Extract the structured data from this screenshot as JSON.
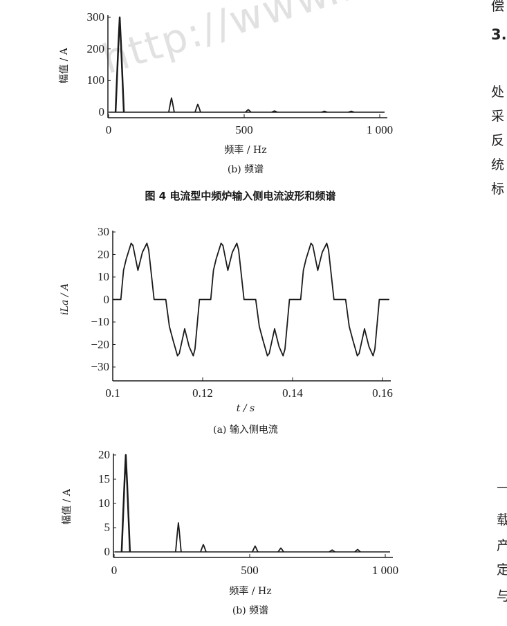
{
  "watermark": "http://www.lxd",
  "right_column": {
    "lines": [
      "偿",
      "3.",
      "处",
      "采",
      "反",
      "统",
      "标",
      "—",
      "载",
      "产",
      "定",
      "与"
    ]
  },
  "figure4": {
    "caption": "图 4  电流型中频炉输入侧电流波形和频谱",
    "sub_caption": "(b) 频谱"
  },
  "figure5": {
    "sub_caption_a": "(a) 输入侧电流",
    "sub_caption_b": "(b) 频谱"
  },
  "colors": {
    "line": "#1a1a1a",
    "watermark": "#aaaaaa"
  },
  "chart_data": [
    {
      "type": "line",
      "title": "",
      "xlabel": "频率 / Hz",
      "ylabel": "幅值 / A",
      "xlim": [
        0,
        1000
      ],
      "ylim": [
        0,
        300
      ],
      "xticks": [
        "0",
        "500",
        "1 000"
      ],
      "yticks": [
        "0",
        "100",
        "200",
        "300"
      ],
      "peaks": {
        "x": [
          41,
          232,
          329,
          515,
          612,
          796,
          895
        ],
        "y": [
          300,
          45,
          25,
          8,
          4,
          3,
          3
        ]
      },
      "grid": false
    },
    {
      "type": "line",
      "title": "",
      "xlabel": "t / s",
      "ylabel": "iLa / A",
      "xlim": [
        0.1,
        0.16
      ],
      "ylim": [
        -35,
        30
      ],
      "xticks": [
        "0.1",
        "0.12",
        "0.14",
        "0.16"
      ],
      "yticks": [
        "30",
        "20",
        "10",
        "0",
        "−10",
        "−20",
        "−30"
      ],
      "grid": false,
      "x": [
        0.1,
        0.1018,
        0.1024,
        0.103,
        0.1041,
        0.1045,
        0.1056,
        0.1066,
        0.1076,
        0.108,
        0.1092,
        0.1118,
        0.1126,
        0.1134,
        0.1144,
        0.1148,
        0.116,
        0.117,
        0.1179,
        0.1183,
        0.1193,
        0.1218,
        0.1224,
        0.123,
        0.1241,
        0.1245,
        0.1256,
        0.1266,
        0.1276,
        0.128,
        0.1292,
        0.1318,
        0.1326,
        0.1334,
        0.1344,
        0.1348,
        0.136,
        0.137,
        0.1379,
        0.1383,
        0.1393,
        0.1418,
        0.1424,
        0.143,
        0.1441,
        0.1445,
        0.1456,
        0.1466,
        0.1476,
        0.148,
        0.1492,
        0.1518,
        0.1526,
        0.1534,
        0.1544,
        0.1548,
        0.156,
        0.157,
        0.1579,
        0.1583,
        0.1593,
        0.1615
      ],
      "y": [
        0,
        0,
        13,
        18,
        25,
        24,
        13,
        21,
        25,
        22,
        0,
        0,
        -12,
        -18,
        -25,
        -24,
        -13,
        -21,
        -25,
        -22,
        0,
        0,
        13,
        18,
        25,
        24,
        13,
        21,
        25,
        22,
        0,
        0,
        -12,
        -18,
        -25,
        -24,
        -13,
        -21,
        -25,
        -22,
        0,
        0,
        13,
        18,
        25,
        24,
        13,
        21,
        25,
        22,
        0,
        0,
        -12,
        -18,
        -25,
        -24,
        -13,
        -21,
        -25,
        -22,
        0,
        0
      ]
    },
    {
      "type": "line",
      "title": "",
      "xlabel": "频率 / Hz",
      "ylabel": "幅值 / A",
      "xlim": [
        0,
        1000
      ],
      "ylim": [
        -1,
        20
      ],
      "xticks": [
        "0",
        "500",
        "1 000"
      ],
      "yticks": [
        "0",
        "5",
        "10",
        "15",
        "20"
      ],
      "peaks": {
        "x": [
          43,
          237,
          329,
          520,
          615,
          804,
          898
        ],
        "y": [
          20,
          6,
          1.5,
          1.2,
          0.8,
          0.4,
          0.5
        ]
      },
      "grid": false
    }
  ]
}
